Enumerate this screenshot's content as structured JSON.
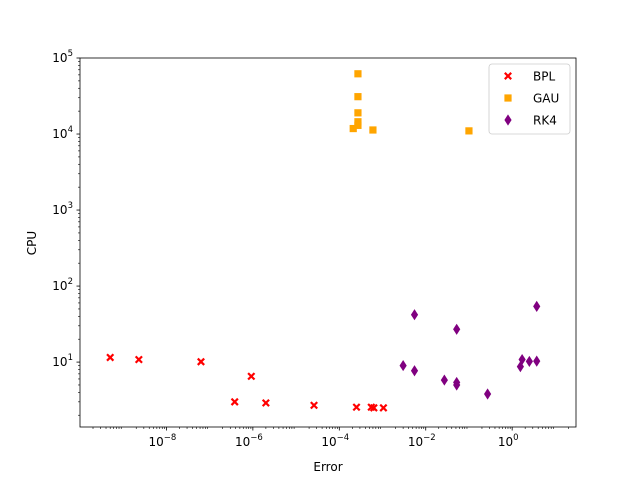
{
  "chart_data": {
    "type": "scatter",
    "xlabel": "Error",
    "ylabel": "CPU",
    "xscale": "log",
    "yscale": "log",
    "xlim": [
      1e-10,
      30
    ],
    "ylim": [
      1.4,
      100000
    ],
    "xticks": [
      {
        "value": 1e-08,
        "base": "10",
        "exp": "−8"
      },
      {
        "value": 1e-06,
        "base": "10",
        "exp": "−6"
      },
      {
        "value": 0.0001,
        "base": "10",
        "exp": "−4"
      },
      {
        "value": 0.01,
        "base": "10",
        "exp": "−2"
      },
      {
        "value": 1,
        "base": "10",
        "exp": "0"
      }
    ],
    "yticks": [
      {
        "value": 10,
        "base": "10",
        "exp": "1"
      },
      {
        "value": 100,
        "base": "10",
        "exp": "2"
      },
      {
        "value": 1000,
        "base": "10",
        "exp": "3"
      },
      {
        "value": 10000,
        "base": "10",
        "exp": "4"
      },
      {
        "value": 100000,
        "base": "10",
        "exp": "5"
      }
    ],
    "grid": false,
    "legend_position": "top-right",
    "series": [
      {
        "name": "BPL",
        "marker": "x",
        "color": "#ff0000",
        "points": [
          {
            "x": 5e-10,
            "y": 11.5
          },
          {
            "x": 2.3e-09,
            "y": 10.8
          },
          {
            "x": 6.3e-08,
            "y": 10.1
          },
          {
            "x": 3.8e-07,
            "y": 3.0
          },
          {
            "x": 9.2e-07,
            "y": 6.5
          },
          {
            "x": 2e-06,
            "y": 2.9
          },
          {
            "x": 2.6e-05,
            "y": 2.7
          },
          {
            "x": 0.00025,
            "y": 2.55
          },
          {
            "x": 0.00055,
            "y": 2.55
          },
          {
            "x": 0.00063,
            "y": 2.5
          },
          {
            "x": 0.00105,
            "y": 2.5
          }
        ]
      },
      {
        "name": "GAU",
        "marker": "s",
        "color": "#ffa500",
        "points": [
          {
            "x": 0.00027,
            "y": 62000
          },
          {
            "x": 0.00027,
            "y": 31000
          },
          {
            "x": 0.00027,
            "y": 19000
          },
          {
            "x": 0.00027,
            "y": 14500
          },
          {
            "x": 0.00027,
            "y": 13000
          },
          {
            "x": 0.00021,
            "y": 11800
          },
          {
            "x": 0.0006,
            "y": 11300
          },
          {
            "x": 0.1,
            "y": 11000
          }
        ]
      },
      {
        "name": "RK4",
        "marker": "d",
        "color": "#800080",
        "points": [
          {
            "x": 0.003,
            "y": 9.0
          },
          {
            "x": 0.0055,
            "y": 42
          },
          {
            "x": 0.0055,
            "y": 7.7
          },
          {
            "x": 0.027,
            "y": 5.8
          },
          {
            "x": 0.052,
            "y": 27
          },
          {
            "x": 0.052,
            "y": 5.4
          },
          {
            "x": 0.052,
            "y": 5.0
          },
          {
            "x": 0.27,
            "y": 3.8
          },
          {
            "x": 1.55,
            "y": 8.7
          },
          {
            "x": 1.7,
            "y": 10.8
          },
          {
            "x": 2.5,
            "y": 10.2
          },
          {
            "x": 3.7,
            "y": 10.3
          },
          {
            "x": 3.7,
            "y": 54
          }
        ]
      }
    ]
  }
}
